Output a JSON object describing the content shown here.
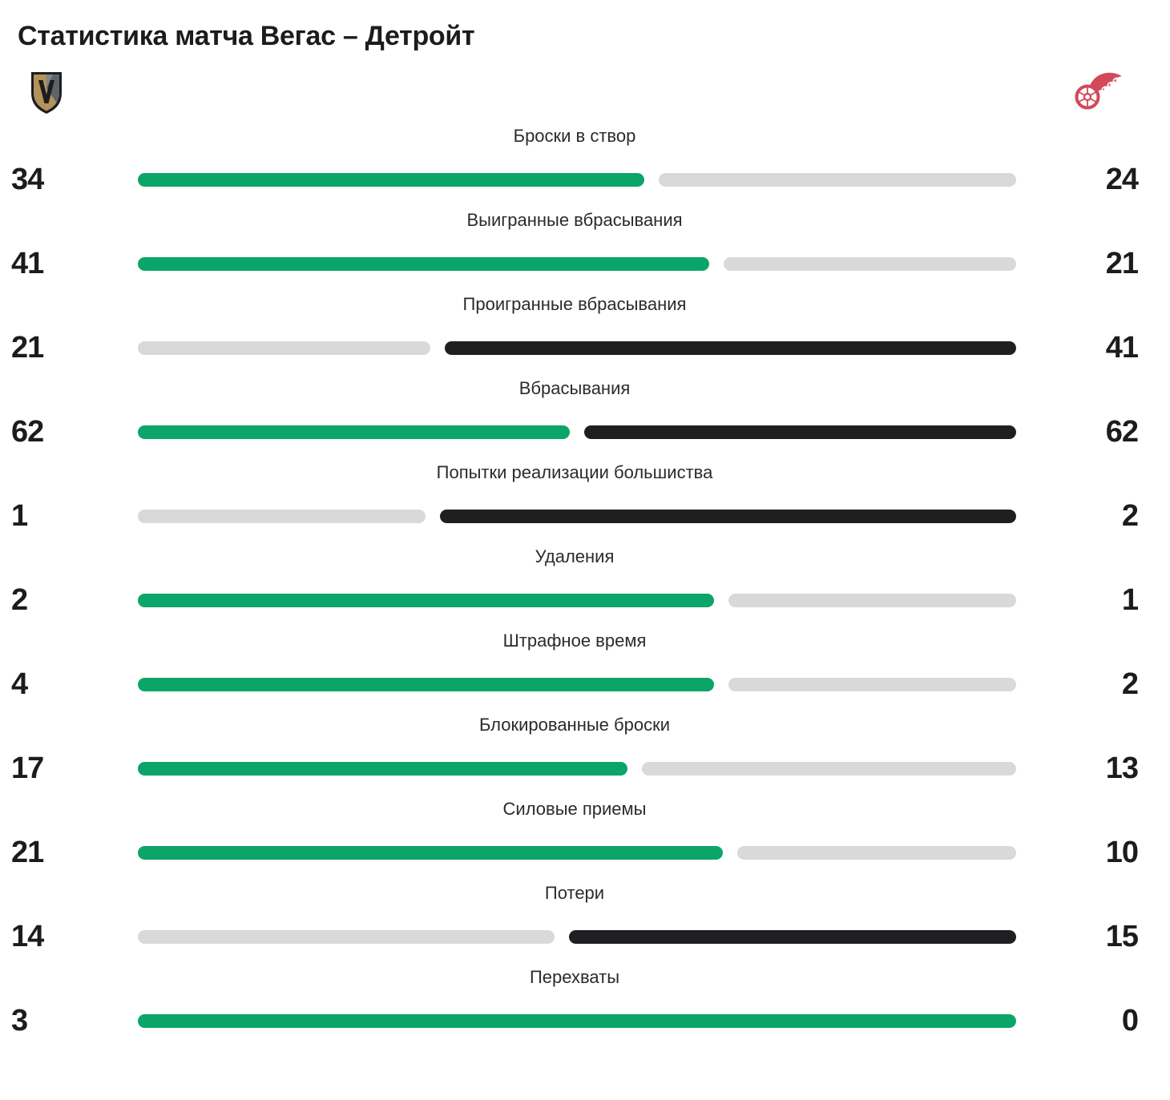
{
  "header": {
    "title": "Статистика матча Вегас – Детройт"
  },
  "teams": {
    "home": {
      "name": "Вегас",
      "logo": "vegas-golden-knights"
    },
    "away": {
      "name": "Детройт",
      "logo": "detroit-red-wings"
    }
  },
  "colors": {
    "home_leading_bar": "#0ca569",
    "away_leading_bar": "#1f1f21",
    "trailing_bar": "#d9d9d9",
    "text": "#1c1c1e",
    "vegas_gold": "#b2935a",
    "vegas_steel": "#5e6468",
    "vegas_black": "#1d1d1f",
    "detroit_red": "#d2495a"
  },
  "chart_data": {
    "type": "bar",
    "subtype": "head-to-head comparison, proportional split bars",
    "title": "Статистика матча Вегас – Детройт",
    "legend_position": "none",
    "grid": false,
    "teams": [
      "Вегас",
      "Детройт"
    ],
    "categories": [
      "Броски в створ",
      "Выигранные вбрасывания",
      "Проигранные вбрасывания",
      "Вбрасывания",
      "Попытки реализации большиства",
      "Удаления",
      "Штрафное время",
      "Блокированные броски",
      "Силовые приемы",
      "Потери",
      "Перехваты"
    ],
    "series": [
      {
        "name": "Вегас",
        "values": [
          34,
          41,
          21,
          62,
          1,
          2,
          4,
          17,
          21,
          14,
          3
        ]
      },
      {
        "name": "Детройт",
        "values": [
          24,
          21,
          41,
          62,
          2,
          1,
          2,
          13,
          10,
          15,
          0
        ]
      }
    ],
    "bar_color_rules": {
      "home_leading_or_tied": "#0ca569",
      "away_leading_or_tied": "#1f1f21",
      "trailing_side": "#d9d9d9"
    },
    "rows": [
      {
        "label": "Броски в створ",
        "home": 34,
        "away": 24,
        "home_style": "green",
        "away_style": "gray"
      },
      {
        "label": "Выигранные вбрасывания",
        "home": 41,
        "away": 21,
        "home_style": "green",
        "away_style": "gray"
      },
      {
        "label": "Проигранные вбрасывания",
        "home": 21,
        "away": 41,
        "home_style": "gray",
        "away_style": "black"
      },
      {
        "label": "Вбрасывания",
        "home": 62,
        "away": 62,
        "home_style": "green",
        "away_style": "black"
      },
      {
        "label": "Попытки реализации большиства",
        "home": 1,
        "away": 2,
        "home_style": "gray",
        "away_style": "black"
      },
      {
        "label": "Удаления",
        "home": 2,
        "away": 1,
        "home_style": "green",
        "away_style": "gray"
      },
      {
        "label": "Штрафное время",
        "home": 4,
        "away": 2,
        "home_style": "green",
        "away_style": "gray"
      },
      {
        "label": "Блокированные броски",
        "home": 17,
        "away": 13,
        "home_style": "green",
        "away_style": "gray"
      },
      {
        "label": "Силовые приемы",
        "home": 21,
        "away": 10,
        "home_style": "green",
        "away_style": "gray"
      },
      {
        "label": "Потери",
        "home": 14,
        "away": 15,
        "home_style": "gray",
        "away_style": "black"
      },
      {
        "label": "Перехваты",
        "home": 3,
        "away": 0,
        "home_style": "green",
        "away_style": "none"
      }
    ]
  }
}
